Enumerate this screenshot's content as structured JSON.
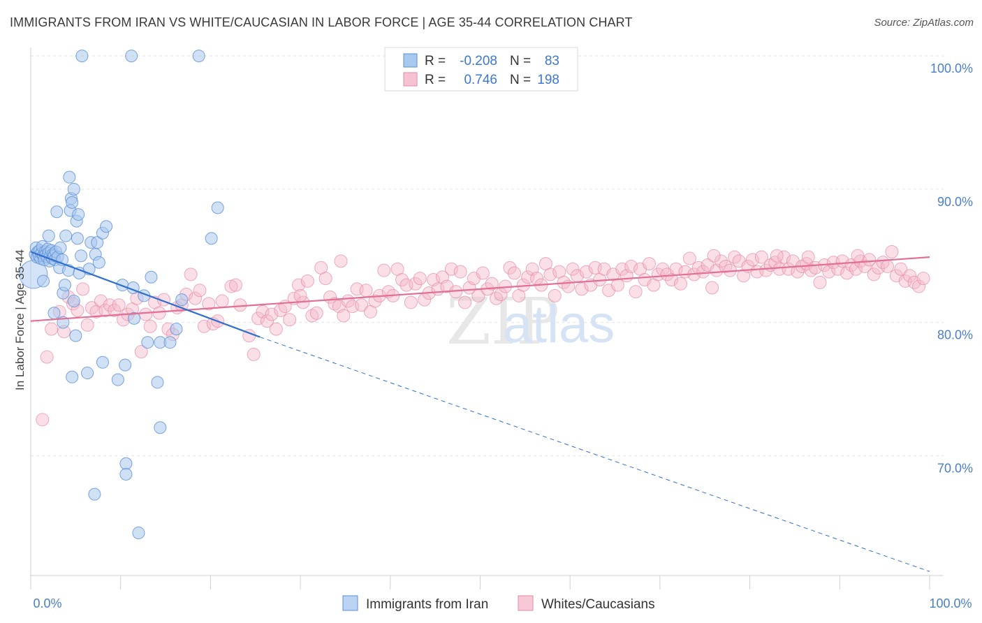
{
  "title": "IMMIGRANTS FROM IRAN VS WHITE/CAUCASIAN IN LABOR FORCE | AGE 35-44 CORRELATION CHART",
  "source": "Source: ZipAtlas.com",
  "watermark": {
    "zip": "ZIP",
    "atlas": "atlas"
  },
  "legend": {
    "rows": [
      {
        "r_label": "R =",
        "r_value": "-0.208",
        "n_label": "N =",
        "n_value": "83"
      },
      {
        "r_label": "R =",
        "r_value": "0.746",
        "n_label": "N =",
        "n_value": "198"
      }
    ]
  },
  "bottom_legend": [
    "Immigrants from Iran",
    "Whites/Caucasians"
  ],
  "colors": {
    "blue_fill": "#a9c8ef",
    "blue_stroke": "#5b8fd6",
    "blue_line": "#2f6fd0",
    "pink_fill": "#f5b7ca",
    "pink_stroke": "#e58aa6",
    "pink_line": "#e26f95",
    "tick_label": "#4a7fcb",
    "grid": "#e3e3e3"
  },
  "chart_data": {
    "type": "scatter",
    "xlabel": "",
    "ylabel": "In Labor Force | Age 35-44",
    "xlim": [
      0,
      100
    ],
    "ylim": [
      61,
      101
    ],
    "x_tick_labels": [
      {
        "value": 0,
        "label": "0.0%"
      },
      {
        "value": 100,
        "label": "100.0%"
      }
    ],
    "y_tick_labels": [
      {
        "value": 100,
        "label": "100.0%"
      },
      {
        "value": 90,
        "label": "90.0%"
      },
      {
        "value": 80,
        "label": "80.0%"
      },
      {
        "value": 70,
        "label": "70.0%"
      }
    ],
    "series": [
      {
        "name": "Immigrants from Iran",
        "R": -0.208,
        "N": 83,
        "trend": {
          "x0": 0,
          "y0": 85.3,
          "x1": 25.5,
          "y1": 78.9,
          "dash_x1": 100,
          "dash_y1": 61.3
        },
        "points": [
          [
            0.3,
            83.6
          ],
          [
            0.5,
            85.1
          ],
          [
            0.6,
            85.6
          ],
          [
            0.7,
            84.9
          ],
          [
            0.8,
            85.3
          ],
          [
            0.9,
            85.0
          ],
          [
            1.0,
            85.4
          ],
          [
            1.1,
            84.8
          ],
          [
            1.2,
            85.2
          ],
          [
            1.3,
            85.7
          ],
          [
            1.4,
            85.0
          ],
          [
            1.5,
            84.7
          ],
          [
            1.6,
            85.3
          ],
          [
            1.7,
            85.1
          ],
          [
            1.8,
            84.9
          ],
          [
            1.9,
            85.5
          ],
          [
            2.0,
            85.2
          ],
          [
            2.1,
            84.6
          ],
          [
            2.2,
            85.0
          ],
          [
            2.3,
            85.4
          ],
          [
            2.4,
            84.8
          ],
          [
            2.5,
            85.1
          ],
          [
            2.6,
            85.0
          ],
          [
            2.7,
            84.7
          ],
          [
            1.4,
            83.1
          ],
          [
            2.0,
            86.5
          ],
          [
            2.8,
            85.3
          ],
          [
            3.0,
            84.9
          ],
          [
            3.2,
            84.1
          ],
          [
            3.3,
            85.6
          ],
          [
            3.5,
            84.7
          ],
          [
            2.9,
            88.3
          ],
          [
            3.6,
            82.2
          ],
          [
            3.8,
            82.8
          ],
          [
            3.9,
            86.5
          ],
          [
            4.2,
            83.9
          ],
          [
            4.4,
            88.4
          ],
          [
            4.5,
            89.3
          ],
          [
            4.6,
            89.0
          ],
          [
            4.3,
            90.9
          ],
          [
            4.8,
            90.0
          ],
          [
            5.1,
            87.6
          ],
          [
            5.3,
            88.1
          ],
          [
            5.2,
            86.3
          ],
          [
            5.6,
            85.0
          ],
          [
            5.4,
            83.7
          ],
          [
            6.5,
            84.0
          ],
          [
            6.7,
            86.0
          ],
          [
            7.2,
            85.1
          ],
          [
            7.4,
            86.0
          ],
          [
            7.6,
            84.5
          ],
          [
            8.0,
            86.7
          ],
          [
            8.4,
            87.2
          ],
          [
            10.2,
            82.8
          ],
          [
            11.4,
            82.6
          ],
          [
            12.6,
            82.0
          ],
          [
            13.4,
            83.4
          ],
          [
            14.4,
            78.5
          ],
          [
            13.0,
            78.5
          ],
          [
            11.5,
            80.3
          ],
          [
            15.5,
            78.5
          ],
          [
            16.2,
            79.5
          ],
          [
            16.8,
            81.7
          ],
          [
            14.1,
            75.5
          ],
          [
            10.5,
            76.8
          ],
          [
            9.7,
            75.7
          ],
          [
            8.0,
            77.0
          ],
          [
            6.3,
            76.2
          ],
          [
            4.6,
            75.9
          ],
          [
            2.6,
            80.7
          ],
          [
            3.6,
            80.0
          ],
          [
            4.8,
            81.6
          ],
          [
            5.0,
            79.0
          ],
          [
            14.4,
            72.1
          ],
          [
            10.6,
            69.4
          ],
          [
            10.6,
            68.6
          ],
          [
            7.1,
            67.1
          ],
          [
            12.0,
            64.2
          ],
          [
            5.7,
            100.0
          ],
          [
            11.2,
            100.0
          ],
          [
            18.7,
            100.0
          ],
          [
            20.8,
            88.6
          ],
          [
            20.1,
            86.3
          ]
        ]
      },
      {
        "name": "Whites/Caucasians",
        "R": 0.746,
        "N": 198,
        "trend": {
          "x0": 0,
          "y0": 80.1,
          "x1": 100,
          "y1": 84.9
        },
        "points": [
          [
            1.3,
            72.7
          ],
          [
            1.8,
            77.4
          ],
          [
            2.3,
            79.5
          ],
          [
            3.2,
            80.8
          ],
          [
            3.7,
            79.3
          ],
          [
            4.2,
            81.9
          ],
          [
            4.7,
            81.4
          ],
          [
            5.2,
            80.9
          ],
          [
            5.8,
            82.5
          ],
          [
            6.3,
            79.8
          ],
          [
            6.8,
            81.1
          ],
          [
            7.3,
            80.8
          ],
          [
            7.8,
            81.6
          ],
          [
            8.3,
            80.9
          ],
          [
            8.8,
            81.3
          ],
          [
            9.3,
            80.9
          ],
          [
            9.8,
            81.3
          ],
          [
            10.3,
            80.2
          ],
          [
            10.8,
            80.6
          ],
          [
            11.3,
            81.0
          ],
          [
            11.8,
            81.8
          ],
          [
            12.3,
            77.8
          ],
          [
            12.8,
            80.6
          ],
          [
            13.3,
            79.7
          ],
          [
            13.8,
            81.5
          ],
          [
            14.3,
            80.7
          ],
          [
            14.8,
            81.7
          ],
          [
            15.3,
            79.5
          ],
          [
            15.8,
            79.1
          ],
          [
            16.3,
            81.1
          ],
          [
            16.8,
            81.3
          ],
          [
            17.3,
            82.1
          ],
          [
            17.8,
            83.6
          ],
          [
            18.3,
            81.8
          ],
          [
            18.8,
            82.4
          ],
          [
            19.3,
            79.7
          ],
          [
            19.8,
            81.4
          ],
          [
            20.3,
            79.9
          ],
          [
            20.8,
            80.1
          ],
          [
            21.3,
            81.6
          ],
          [
            22.3,
            82.7
          ],
          [
            22.8,
            82.8
          ],
          [
            23.3,
            81.3
          ],
          [
            24.3,
            79.0
          ],
          [
            24.8,
            77.6
          ],
          [
            25.3,
            80.3
          ],
          [
            25.8,
            80.8
          ],
          [
            26.3,
            80.1
          ],
          [
            26.8,
            80.6
          ],
          [
            27.3,
            79.5
          ],
          [
            27.8,
            80.9
          ],
          [
            28.3,
            81.2
          ],
          [
            28.8,
            80.2
          ],
          [
            29.3,
            81.8
          ],
          [
            29.8,
            82.8
          ],
          [
            30.3,
            81.5
          ],
          [
            30.8,
            83.1
          ],
          [
            31.3,
            80.5
          ],
          [
            31.8,
            80.7
          ],
          [
            32.3,
            84.1
          ],
          [
            32.8,
            83.3
          ],
          [
            33.3,
            81.9
          ],
          [
            33.8,
            81.4
          ],
          [
            34.3,
            81.2
          ],
          [
            34.8,
            80.5
          ],
          [
            35.3,
            81.6
          ],
          [
            35.8,
            81.2
          ],
          [
            36.3,
            82.5
          ],
          [
            36.8,
            81.3
          ],
          [
            37.3,
            82.4
          ],
          [
            37.8,
            80.8
          ],
          [
            38.3,
            81.6
          ],
          [
            38.8,
            82.0
          ],
          [
            39.3,
            83.9
          ],
          [
            39.8,
            82.3
          ],
          [
            40.3,
            82.0
          ],
          [
            40.8,
            84.0
          ],
          [
            41.3,
            83.2
          ],
          [
            41.8,
            82.8
          ],
          [
            42.3,
            81.5
          ],
          [
            42.8,
            82.9
          ],
          [
            43.3,
            83.3
          ],
          [
            43.8,
            81.7
          ],
          [
            44.3,
            82.2
          ],
          [
            44.8,
            83.2
          ],
          [
            45.3,
            82.5
          ],
          [
            45.8,
            83.4
          ],
          [
            46.3,
            82.7
          ],
          [
            46.8,
            84.0
          ],
          [
            47.3,
            82.3
          ],
          [
            47.8,
            83.8
          ],
          [
            48.3,
            81.5
          ],
          [
            48.8,
            82.6
          ],
          [
            49.3,
            83.3
          ],
          [
            49.8,
            82.0
          ],
          [
            50.3,
            83.7
          ],
          [
            50.8,
            82.5
          ],
          [
            51.3,
            82.9
          ],
          [
            51.8,
            81.8
          ],
          [
            52.3,
            82.1
          ],
          [
            52.8,
            82.7
          ],
          [
            53.3,
            84.1
          ],
          [
            53.8,
            83.7
          ],
          [
            54.3,
            82.0
          ],
          [
            54.8,
            82.8
          ],
          [
            55.3,
            83.4
          ],
          [
            55.8,
            84.0
          ],
          [
            56.3,
            83.3
          ],
          [
            56.8,
            82.8
          ],
          [
            57.3,
            84.4
          ],
          [
            57.8,
            83.6
          ],
          [
            58.3,
            82.0
          ],
          [
            58.8,
            83.8
          ],
          [
            59.3,
            83.0
          ],
          [
            59.8,
            82.7
          ],
          [
            60.3,
            84.0
          ],
          [
            60.8,
            83.5
          ],
          [
            61.3,
            82.5
          ],
          [
            61.8,
            83.8
          ],
          [
            62.3,
            82.8
          ],
          [
            62.8,
            84.1
          ],
          [
            63.3,
            83.2
          ],
          [
            63.8,
            84.0
          ],
          [
            64.3,
            82.4
          ],
          [
            64.8,
            83.6
          ],
          [
            65.3,
            82.8
          ],
          [
            65.8,
            84.0
          ],
          [
            66.3,
            83.5
          ],
          [
            66.8,
            84.2
          ],
          [
            67.3,
            82.3
          ],
          [
            67.8,
            84.0
          ],
          [
            68.3,
            83.2
          ],
          [
            68.8,
            84.4
          ],
          [
            69.3,
            82.8
          ],
          [
            69.8,
            83.6
          ],
          [
            70.3,
            84.0
          ],
          [
            70.8,
            83.6
          ],
          [
            71.3,
            83.2
          ],
          [
            71.8,
            84.0
          ],
          [
            72.3,
            82.9
          ],
          [
            72.8,
            83.8
          ],
          [
            73.3,
            84.8
          ],
          [
            73.8,
            83.6
          ],
          [
            74.3,
            84.1
          ],
          [
            74.8,
            83.8
          ],
          [
            75.3,
            84.3
          ],
          [
            75.8,
            82.6
          ],
          [
            76.3,
            83.9
          ],
          [
            76.8,
            84.6
          ],
          [
            77.3,
            84.2
          ],
          [
            77.8,
            83.9
          ],
          [
            78.3,
            84.9
          ],
          [
            78.8,
            84.6
          ],
          [
            79.3,
            83.5
          ],
          [
            79.8,
            84.2
          ],
          [
            80.3,
            84.7
          ],
          [
            80.8,
            83.8
          ],
          [
            81.3,
            84.9
          ],
          [
            81.8,
            83.9
          ],
          [
            82.3,
            84.3
          ],
          [
            82.8,
            84.5
          ],
          [
            83.3,
            84.0
          ],
          [
            83.8,
            84.9
          ],
          [
            84.3,
            84.0
          ],
          [
            84.8,
            84.6
          ],
          [
            85.3,
            83.8
          ],
          [
            85.8,
            84.2
          ],
          [
            86.3,
            84.4
          ],
          [
            86.8,
            83.9
          ],
          [
            87.3,
            84.1
          ],
          [
            87.8,
            83.0
          ],
          [
            88.3,
            84.3
          ],
          [
            88.8,
            83.8
          ],
          [
            89.3,
            84.5
          ],
          [
            89.8,
            84.0
          ],
          [
            90.3,
            84.6
          ],
          [
            90.8,
            83.7
          ],
          [
            91.3,
            84.3
          ],
          [
            91.8,
            84.0
          ],
          [
            92.3,
            84.6
          ],
          [
            92.8,
            84.2
          ],
          [
            93.3,
            84.7
          ],
          [
            93.8,
            83.6
          ],
          [
            94.3,
            84.1
          ],
          [
            94.8,
            84.5
          ],
          [
            95.3,
            84.2
          ],
          [
            95.8,
            85.3
          ],
          [
            96.3,
            83.5
          ],
          [
            96.8,
            84.0
          ],
          [
            97.3,
            83.1
          ],
          [
            97.8,
            83.5
          ],
          [
            98.3,
            83.0
          ],
          [
            98.8,
            82.7
          ],
          [
            99.3,
            83.3
          ],
          [
            76.0,
            85.0
          ],
          [
            83.0,
            85.0
          ],
          [
            86.5,
            84.9
          ],
          [
            92.0,
            85.0
          ],
          [
            34.5,
            84.6
          ],
          [
            30.0,
            82.0
          ]
        ]
      }
    ]
  }
}
